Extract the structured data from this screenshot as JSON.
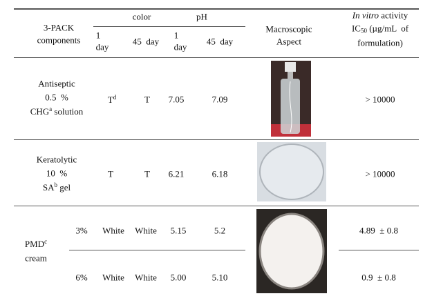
{
  "table": {
    "header": {
      "component": [
        "3-PACK",
        "components"
      ],
      "color": "color",
      "ph": "pH",
      "days": [
        [
          "1",
          "day"
        ],
        "45  day",
        [
          "1",
          "day"
        ],
        "45  day"
      ],
      "aspect": [
        "Macroscopic",
        "Aspect"
      ],
      "activity": {
        "italic": "In vitro",
        "rest": " activity",
        "ic": "IC",
        "sub": "50",
        "unit": " (µg/mL  of",
        "last": "formulation)"
      }
    },
    "rows": [
      {
        "name": [
          "Antiseptic",
          "0.5  %"
        ],
        "name_main": "CHG",
        "name_sup": "a",
        "name_end": " solution",
        "color_1": "T",
        "color_1_sup": "d",
        "color_45": "T",
        "ph_1": "7.05",
        "ph_45": "7.09",
        "activity": "> 10000"
      },
      {
        "name": [
          "Keratolytic",
          "10  %"
        ],
        "name_main": "SA",
        "name_sup": "b",
        "name_end": " gel",
        "color_1": "T",
        "color_45": "T",
        "ph_1": "6.21",
        "ph_45": "6.18",
        "activity": "> 10000"
      },
      {
        "name_main": "PMD",
        "name_sup": "c",
        "name_end": "cream",
        "sub": [
          {
            "dose": "3%",
            "color_1": "White",
            "color_45": "White",
            "ph_1": "5.15",
            "ph_45": "5.2",
            "activity": "4.89  ± 0.8"
          },
          {
            "dose": "6%",
            "color_1": "White",
            "color_45": "White",
            "ph_1": "5.00",
            "ph_45": "5.10",
            "activity": "0.9  ± 0.8"
          }
        ]
      }
    ]
  }
}
